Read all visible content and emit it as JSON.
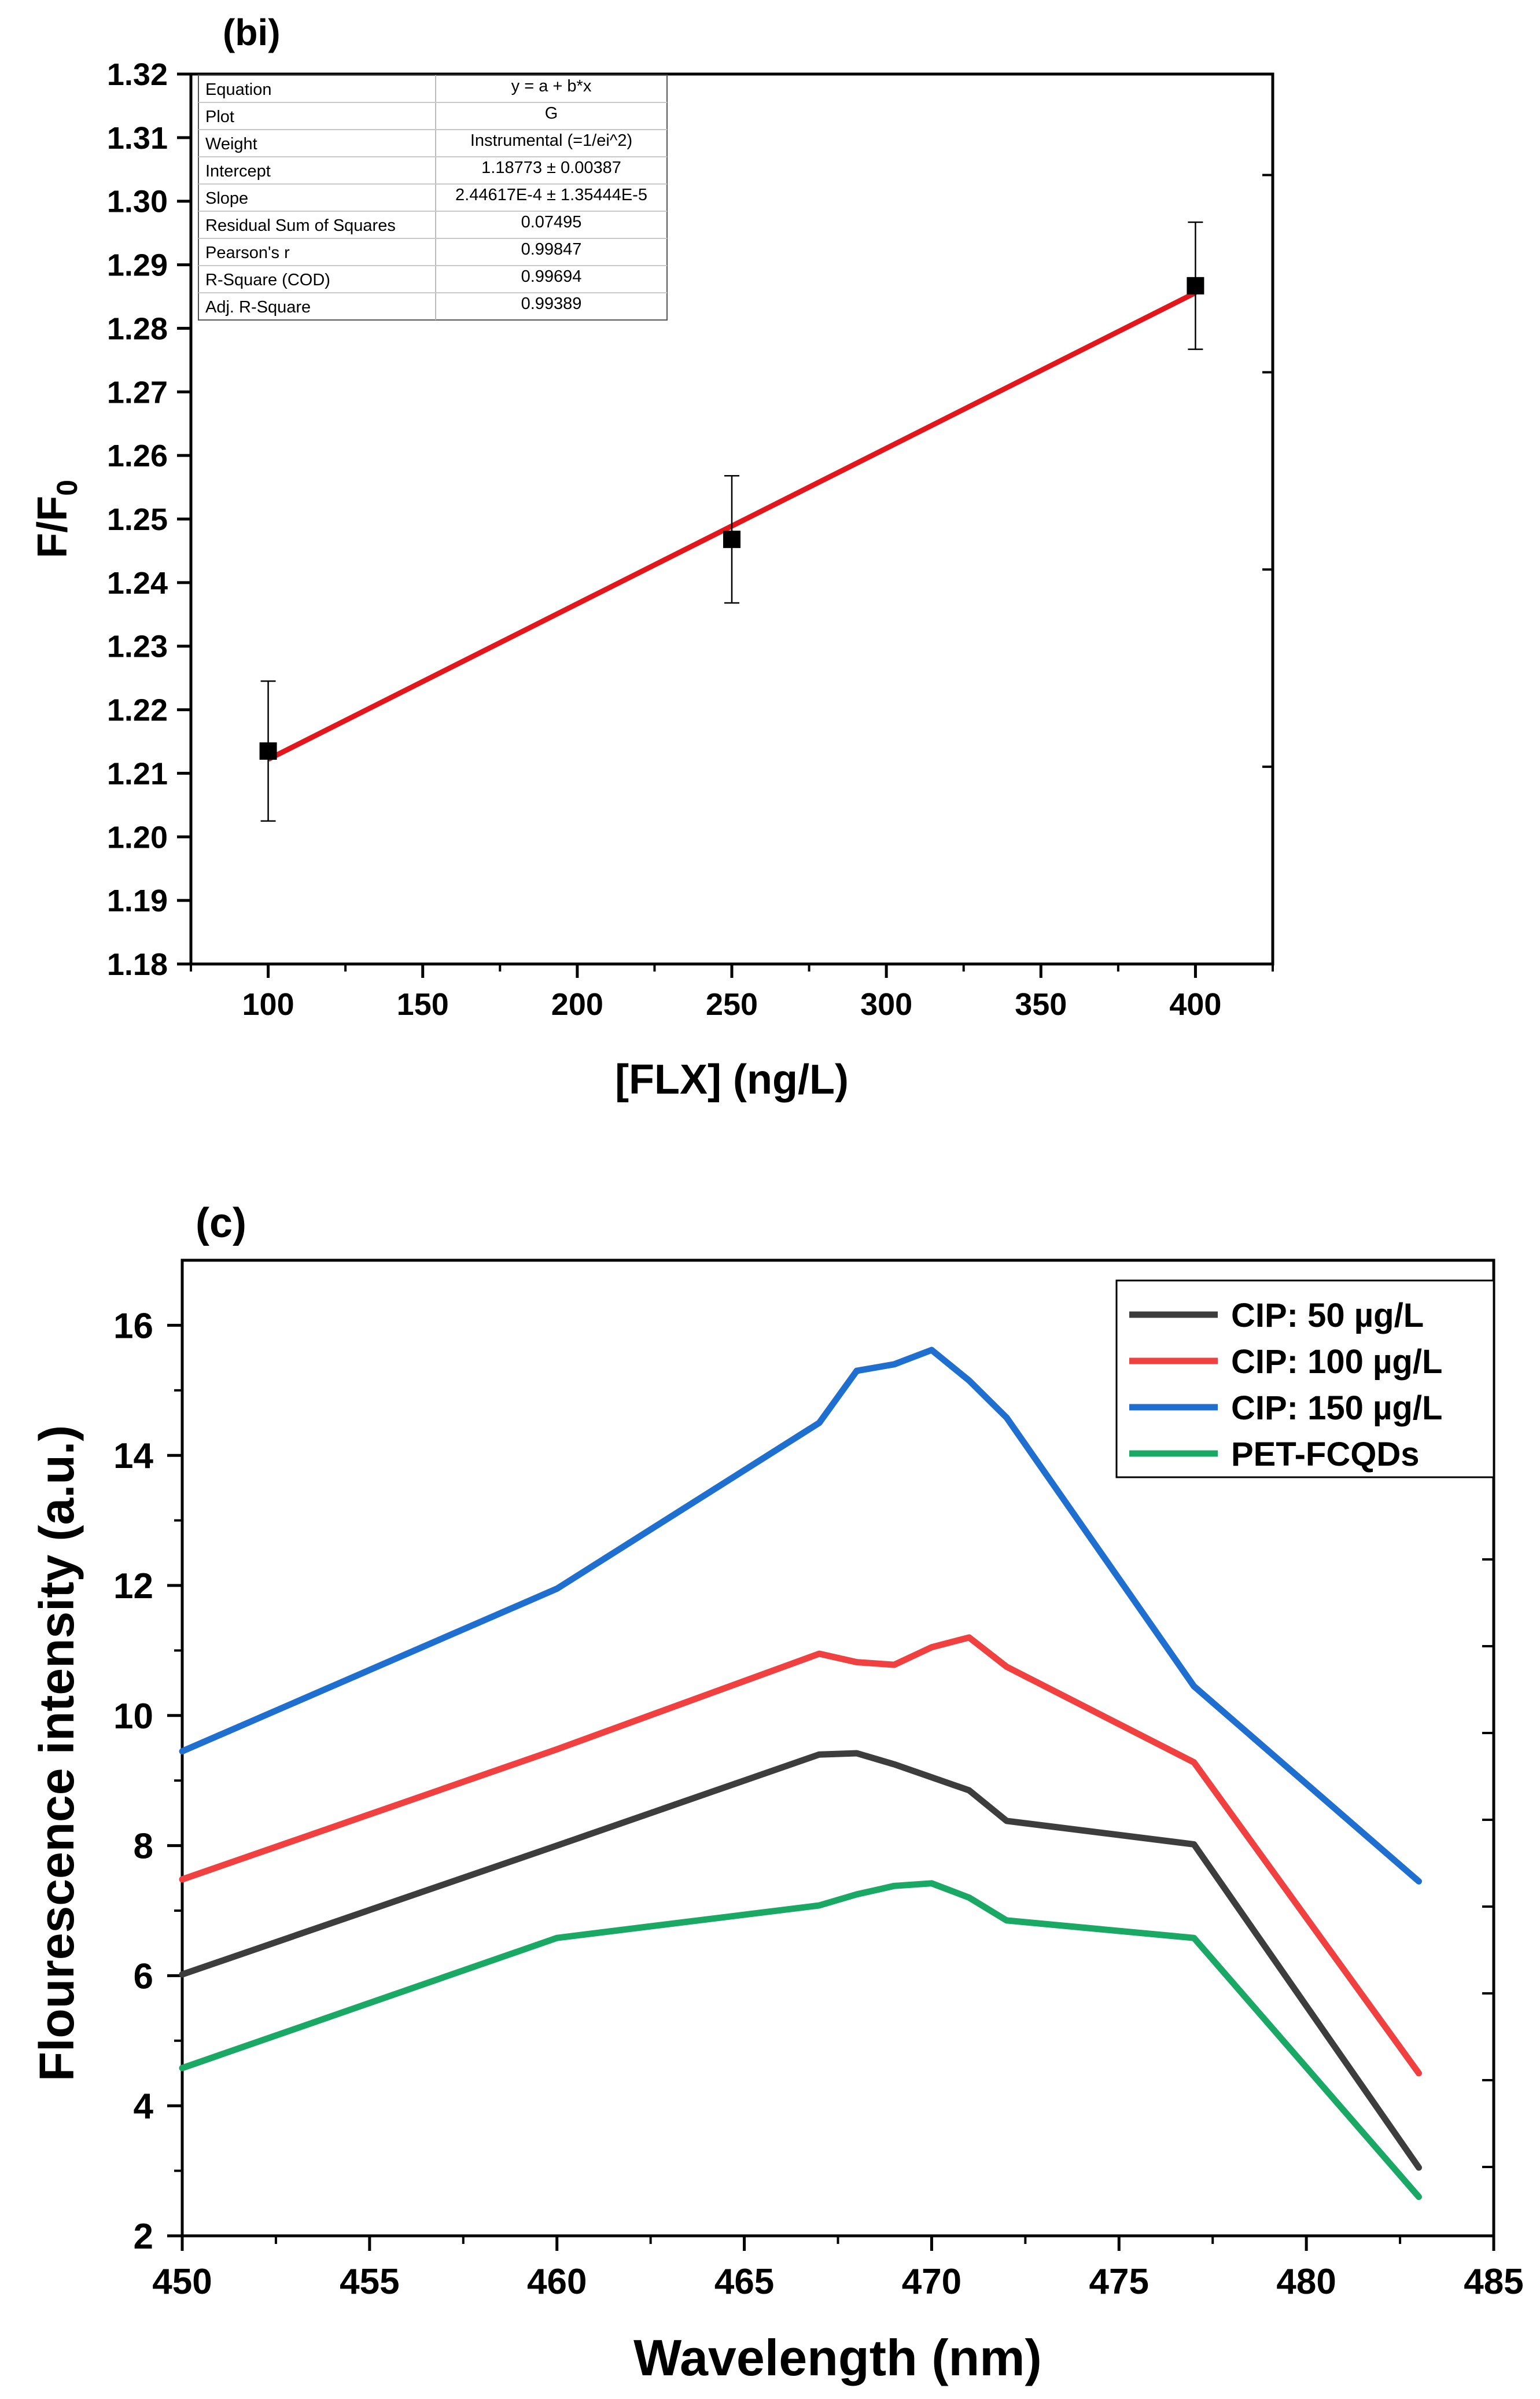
{
  "chart_data": [
    {
      "panel": "(bi)",
      "type": "scatter",
      "xlabel": "[FLX] (ng/L)",
      "ylabel_main": "F/F",
      "ylabel_sub": "0",
      "xlim": [
        75,
        425
      ],
      "ylim": [
        1.18,
        1.32
      ],
      "xticks": [
        100,
        150,
        200,
        250,
        300,
        350,
        400
      ],
      "yticks": [
        1.18,
        1.19,
        1.2,
        1.21,
        1.22,
        1.23,
        1.24,
        1.25,
        1.26,
        1.27,
        1.28,
        1.29,
        1.3,
        1.31,
        1.32
      ],
      "points": [
        {
          "x": 100,
          "y": 1.2135,
          "err": 0.011
        },
        {
          "x": 250,
          "y": 1.2468,
          "err": 0.01
        },
        {
          "x": 400,
          "y": 1.2867,
          "err": 0.01
        }
      ],
      "fit_line": {
        "x": [
          100,
          400
        ],
        "y": [
          1.2122,
          1.2856
        ],
        "color": "#e3161b"
      },
      "fit_table": [
        {
          "label": "Equation",
          "value": "y = a + b*x"
        },
        {
          "label": "Plot",
          "value": "G"
        },
        {
          "label": "Weight",
          "value": "Instrumental (=1/ei^2)"
        },
        {
          "label": "Intercept",
          "value": "1.18773 ± 0.00387"
        },
        {
          "label": "Slope",
          "value": "2.44617E-4 ± 1.35444E-5"
        },
        {
          "label": "Residual Sum of Squares",
          "value": "0.07495"
        },
        {
          "label": "Pearson's r",
          "value": "0.99847"
        },
        {
          "label": "R-Square (COD)",
          "value": "0.99694"
        },
        {
          "label": "Adj. R-Square",
          "value": "0.99389"
        }
      ]
    },
    {
      "panel": "(c)",
      "type": "line",
      "xlabel": "Wavelength (nm)",
      "ylabel": "Flourescence intensity (a.u.)",
      "xlim": [
        450,
        485
      ],
      "ylim": [
        2,
        17
      ],
      "xticks": [
        450,
        455,
        460,
        465,
        470,
        475,
        480,
        485
      ],
      "yticks": [
        2,
        4,
        6,
        8,
        10,
        12,
        14,
        16
      ],
      "legend_position": "top-right",
      "x": [
        450,
        460,
        467,
        468,
        469,
        470,
        471,
        472,
        477,
        483
      ],
      "series": [
        {
          "name": "CIP: 50 µg/L",
          "color": "#3d3d3d",
          "values": [
            6.02,
            8.0,
            9.4,
            9.42,
            9.25,
            9.05,
            8.85,
            8.38,
            8.02,
            3.05
          ]
        },
        {
          "name": "CIP: 100 µg/L",
          "color": "#f04040",
          "values": [
            7.48,
            9.48,
            10.95,
            10.82,
            10.78,
            11.05,
            11.2,
            10.75,
            9.28,
            4.5
          ]
        },
        {
          "name": "CIP: 150 µg/L",
          "color": "#1f6fd1",
          "values": [
            9.45,
            11.95,
            14.5,
            15.3,
            15.4,
            15.62,
            15.15,
            14.58,
            10.45,
            7.45
          ]
        },
        {
          "name": "PET-FCQDs",
          "color": "#1aa865",
          "values": [
            4.58,
            6.58,
            7.08,
            7.25,
            7.38,
            7.42,
            7.2,
            6.85,
            6.58,
            2.6
          ]
        }
      ]
    }
  ]
}
